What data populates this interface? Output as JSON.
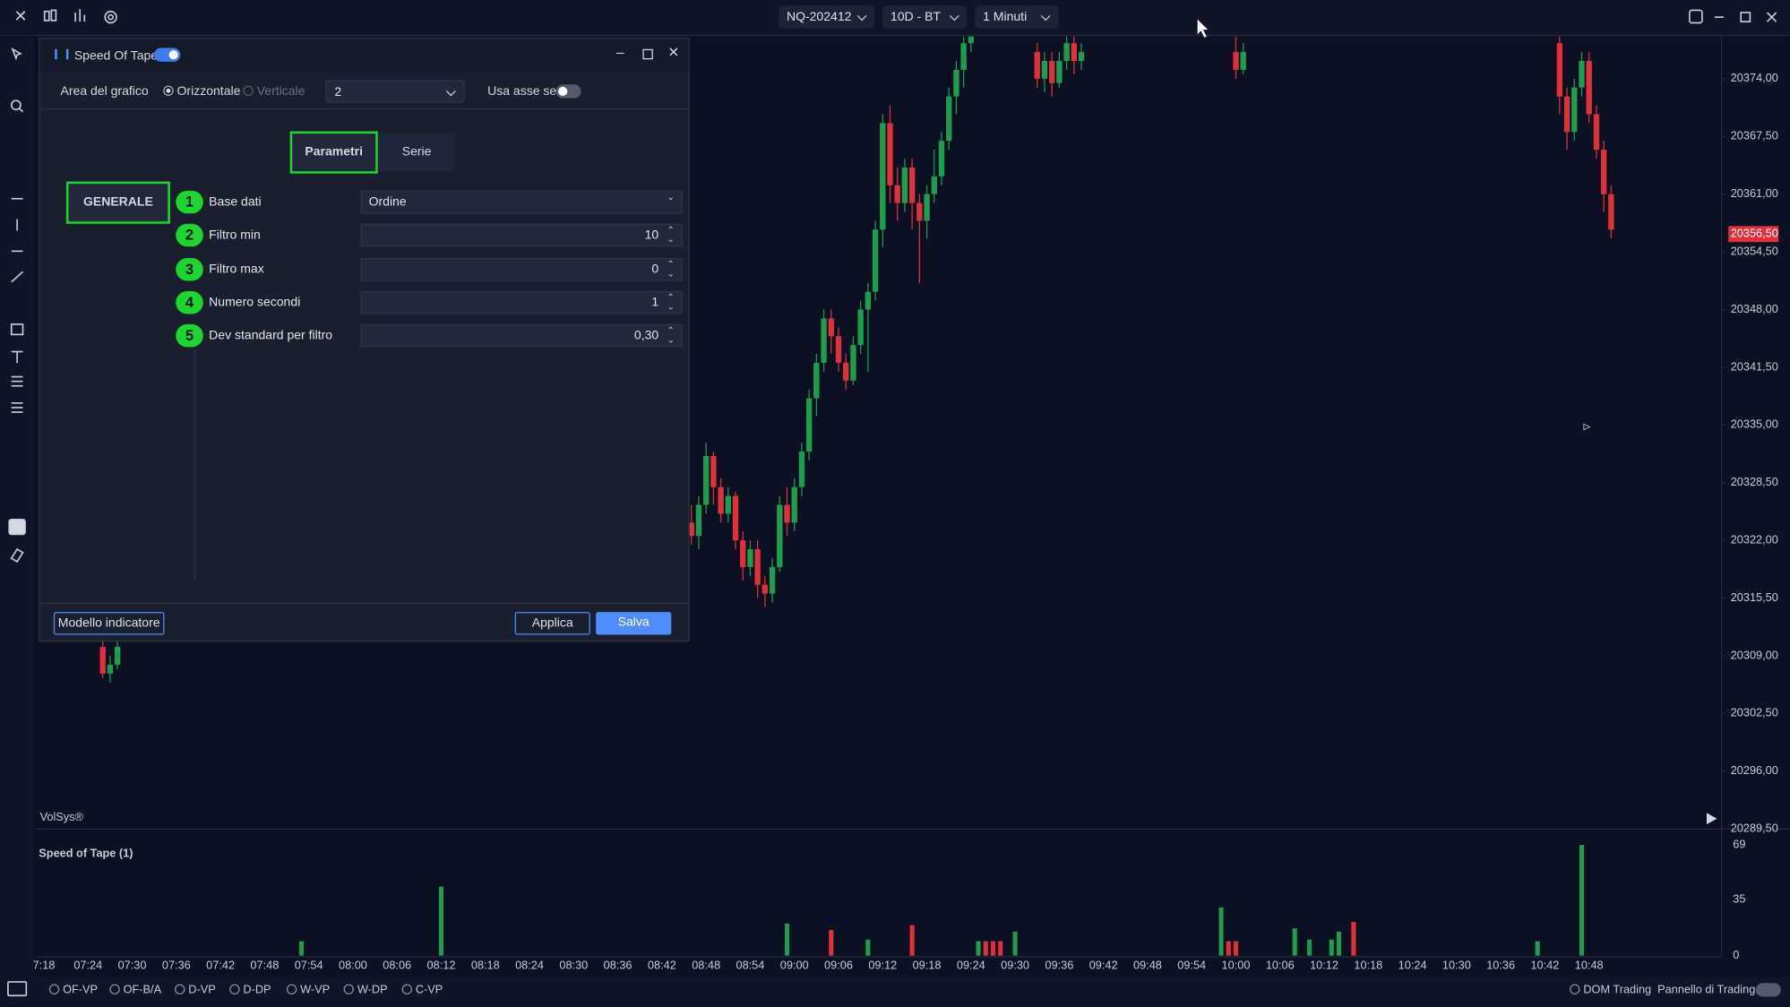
{
  "toolbar": {
    "symbol": "NQ-202412",
    "range": "10D - BT",
    "timeframe": "1 Minuti"
  },
  "dialog": {
    "title": "Speed Of Tape",
    "area_label": "Area del grafico",
    "orientation_options": [
      "Orizzontale",
      "Verticale"
    ],
    "area_value": "2",
    "secondary_axis_label": "Usa asse sec.",
    "tabs": [
      "Parametri",
      "Serie"
    ],
    "section": "GENERALE",
    "params": [
      {
        "number": 1,
        "label": "Base dati",
        "value": "Ordine"
      },
      {
        "number": 2,
        "label": "Filtro min",
        "value": "10"
      },
      {
        "number": 3,
        "label": "Filtro max",
        "value": "0"
      },
      {
        "number": 4,
        "label": "Numero secondi",
        "value": "1"
      },
      {
        "number": 5,
        "label": "Dev standard per filtro",
        "value": "0,30"
      }
    ],
    "buttons": [
      "Modello indicatore",
      "Applica",
      "Salva"
    ]
  },
  "chart_data": [
    {
      "type": "candlestick",
      "label": "VolSys®",
      "up_color": "#1f9d4c",
      "down_color": "#e0313b",
      "x": [
        "07:26",
        "07:27",
        "07:28",
        "08:45",
        "08:46",
        "08:47",
        "08:48",
        "08:49",
        "08:50",
        "08:51",
        "08:52",
        "08:53",
        "08:54",
        "08:55",
        "08:56",
        "08:57",
        "08:58",
        "08:59",
        "09:00",
        "09:01",
        "09:02",
        "09:03",
        "09:04",
        "09:05",
        "09:06",
        "09:07",
        "09:08",
        "09:09",
        "09:10",
        "09:11",
        "09:12",
        "09:13",
        "09:14",
        "09:15",
        "09:16",
        "09:17",
        "09:18",
        "09:19",
        "09:20",
        "09:21",
        "09:22",
        "09:23",
        "09:24",
        "09:33",
        "09:34",
        "09:35",
        "09:36",
        "09:37",
        "09:38",
        "09:39",
        "10:00",
        "10:01",
        "10:44",
        "10:45",
        "10:46",
        "10:47",
        "10:48",
        "10:49",
        "10:50",
        "10:51"
      ],
      "open": [
        20310,
        20307,
        20308,
        20327.5,
        20324,
        20322.5,
        20326,
        20331.5,
        20328,
        20325,
        20327,
        20322,
        20319,
        20321,
        20317,
        20316,
        20319,
        20326,
        20324,
        20328,
        20332,
        20338,
        20342,
        20347,
        20345,
        20342,
        20340,
        20344,
        20348,
        20350,
        20357,
        20369,
        20362,
        20360,
        20364,
        20360,
        20358,
        20361,
        20363,
        20367,
        20372,
        20375,
        20378,
        20377,
        20374,
        20376,
        20373.5,
        20376,
        20378,
        20376,
        20377,
        20375,
        20378,
        20372,
        20368,
        20373,
        20376,
        20370,
        20366,
        20361
      ],
      "close": [
        20307,
        20308,
        20310,
        20324,
        20322.5,
        20326,
        20331.5,
        20328,
        20325,
        20327,
        20322,
        20319,
        20321,
        20317,
        20316,
        20319,
        20326,
        20324,
        20328,
        20332,
        20338,
        20342,
        20347,
        20345,
        20342,
        20340,
        20344,
        20348,
        20350,
        20357,
        20369,
        20362,
        20360,
        20364,
        20360,
        20358,
        20361,
        20363,
        20367,
        20372,
        20375,
        20378,
        20380,
        20374,
        20376,
        20373.5,
        20376,
        20378,
        20376,
        20377,
        20375,
        20377,
        20372,
        20368,
        20373,
        20376,
        20370,
        20366,
        20361,
        20357
      ],
      "high": [
        20312,
        20309,
        20311,
        20330,
        20326,
        20327,
        20333,
        20332,
        20329,
        20328,
        20327.5,
        20323,
        20322,
        20322,
        20318,
        20320,
        20327,
        20328,
        20329,
        20333,
        20339,
        20343,
        20348,
        20348,
        20346,
        20343,
        20345,
        20349,
        20351,
        20358,
        20370,
        20371,
        20364,
        20365,
        20365,
        20361,
        20362,
        20366,
        20368,
        20373,
        20376,
        20379,
        20381,
        20378,
        20377,
        20377,
        20377,
        20379,
        20379,
        20378,
        20379,
        20378,
        20379,
        20373,
        20374,
        20377,
        20377,
        20371,
        20367,
        20362
      ],
      "low": [
        20306.5,
        20306,
        20307.5,
        20322,
        20321.5,
        20321,
        20325,
        20326,
        20324,
        20324,
        20321,
        20317.5,
        20318,
        20315.5,
        20314.5,
        20315,
        20318.5,
        20322.5,
        20323,
        20327,
        20331,
        20336,
        20341,
        20343,
        20341,
        20339,
        20339.5,
        20343,
        20341,
        20349,
        20355,
        20360,
        20358,
        20359,
        20357,
        20351,
        20356,
        20360,
        20362,
        20366,
        20370,
        20373,
        20377,
        20373,
        20372.5,
        20372,
        20373,
        20375,
        20374.5,
        20375,
        20374,
        20374.5,
        20370,
        20366,
        20367,
        20372,
        20369,
        20365,
        20359,
        20356
      ],
      "xlim": [
        "07:17",
        "11:06"
      ],
      "ylim": [
        20289.5,
        20378.75
      ],
      "yticks": [
        {
          "value": 20374,
          "label": "20374,00"
        },
        {
          "value": 20367.5,
          "label": "20367,50"
        },
        {
          "value": 20361,
          "label": "20361,00"
        },
        {
          "value": 20354.5,
          "label": "20354,50"
        },
        {
          "value": 20348,
          "label": "20348,00"
        },
        {
          "value": 20341.5,
          "label": "20341,50"
        },
        {
          "value": 20335,
          "label": "20335,00"
        },
        {
          "value": 20328.5,
          "label": "20328,50"
        },
        {
          "value": 20322,
          "label": "20322,00"
        },
        {
          "value": 20315.5,
          "label": "20315,50"
        },
        {
          "value": 20309,
          "label": "20309,00"
        },
        {
          "value": 20302.5,
          "label": "20302,50"
        },
        {
          "value": 20296,
          "label": "20296,00"
        },
        {
          "value": 20289.5,
          "label": "20289,50"
        }
      ],
      "last_price": {
        "value": 20356.5,
        "label": "20356,50"
      }
    },
    {
      "type": "bar",
      "title": "Speed of Tape (1)",
      "x": [
        "07:53",
        "08:12",
        "08:59",
        "09:05",
        "09:10",
        "09:16",
        "09:25",
        "09:26",
        "09:27",
        "09:28",
        "09:30",
        "09:58",
        "09:59",
        "10:00",
        "10:08",
        "10:10",
        "10:13",
        "10:14",
        "10:16",
        "10:41",
        "10:47"
      ],
      "values": [
        9,
        43,
        20,
        16,
        10,
        19,
        9,
        9,
        9,
        9,
        15,
        30,
        9,
        9,
        17,
        10,
        10,
        15,
        21,
        9,
        69
      ],
      "colors": [
        "#1f9d4c",
        "#1f9d4c",
        "#1f9d4c",
        "#e0313b",
        "#1f9d4c",
        "#e0313b",
        "#1f9d4c",
        "#e0313b",
        "#e0313b",
        "#e0313b",
        "#1f9d4c",
        "#1f9d4c",
        "#e0313b",
        "#e0313b",
        "#1f9d4c",
        "#1f9d4c",
        "#1f9d4c",
        "#1f9d4c",
        "#e0313b",
        "#1f9d4c",
        "#1f9d4c"
      ],
      "xlim": [
        "07:17",
        "11:06"
      ],
      "ylim": [
        0,
        69
      ],
      "yticks": [
        0,
        35,
        69
      ],
      "xticks": [
        "7:18",
        "07:24",
        "07:30",
        "07:36",
        "07:42",
        "07:48",
        "07:54",
        "08:00",
        "08:06",
        "08:12",
        "08:18",
        "08:24",
        "08:30",
        "08:36",
        "08:42",
        "08:48",
        "08:54",
        "09:00",
        "09:06",
        "09:12",
        "09:18",
        "09:24",
        "09:30",
        "09:36",
        "09:42",
        "09:48",
        "09:54",
        "10:00",
        "10:06",
        "10:12",
        "10:18",
        "10:24",
        "10:30",
        "10:36",
        "10:42",
        "10:48"
      ]
    }
  ],
  "bottom_bar": {
    "profiles": [
      "OF-VP",
      "OF-B/A",
      "D-VP",
      "D-DP",
      "W-VP",
      "W-DP",
      "C-VP"
    ],
    "right": [
      "DOM Trading",
      "Pannello di Trading"
    ]
  }
}
